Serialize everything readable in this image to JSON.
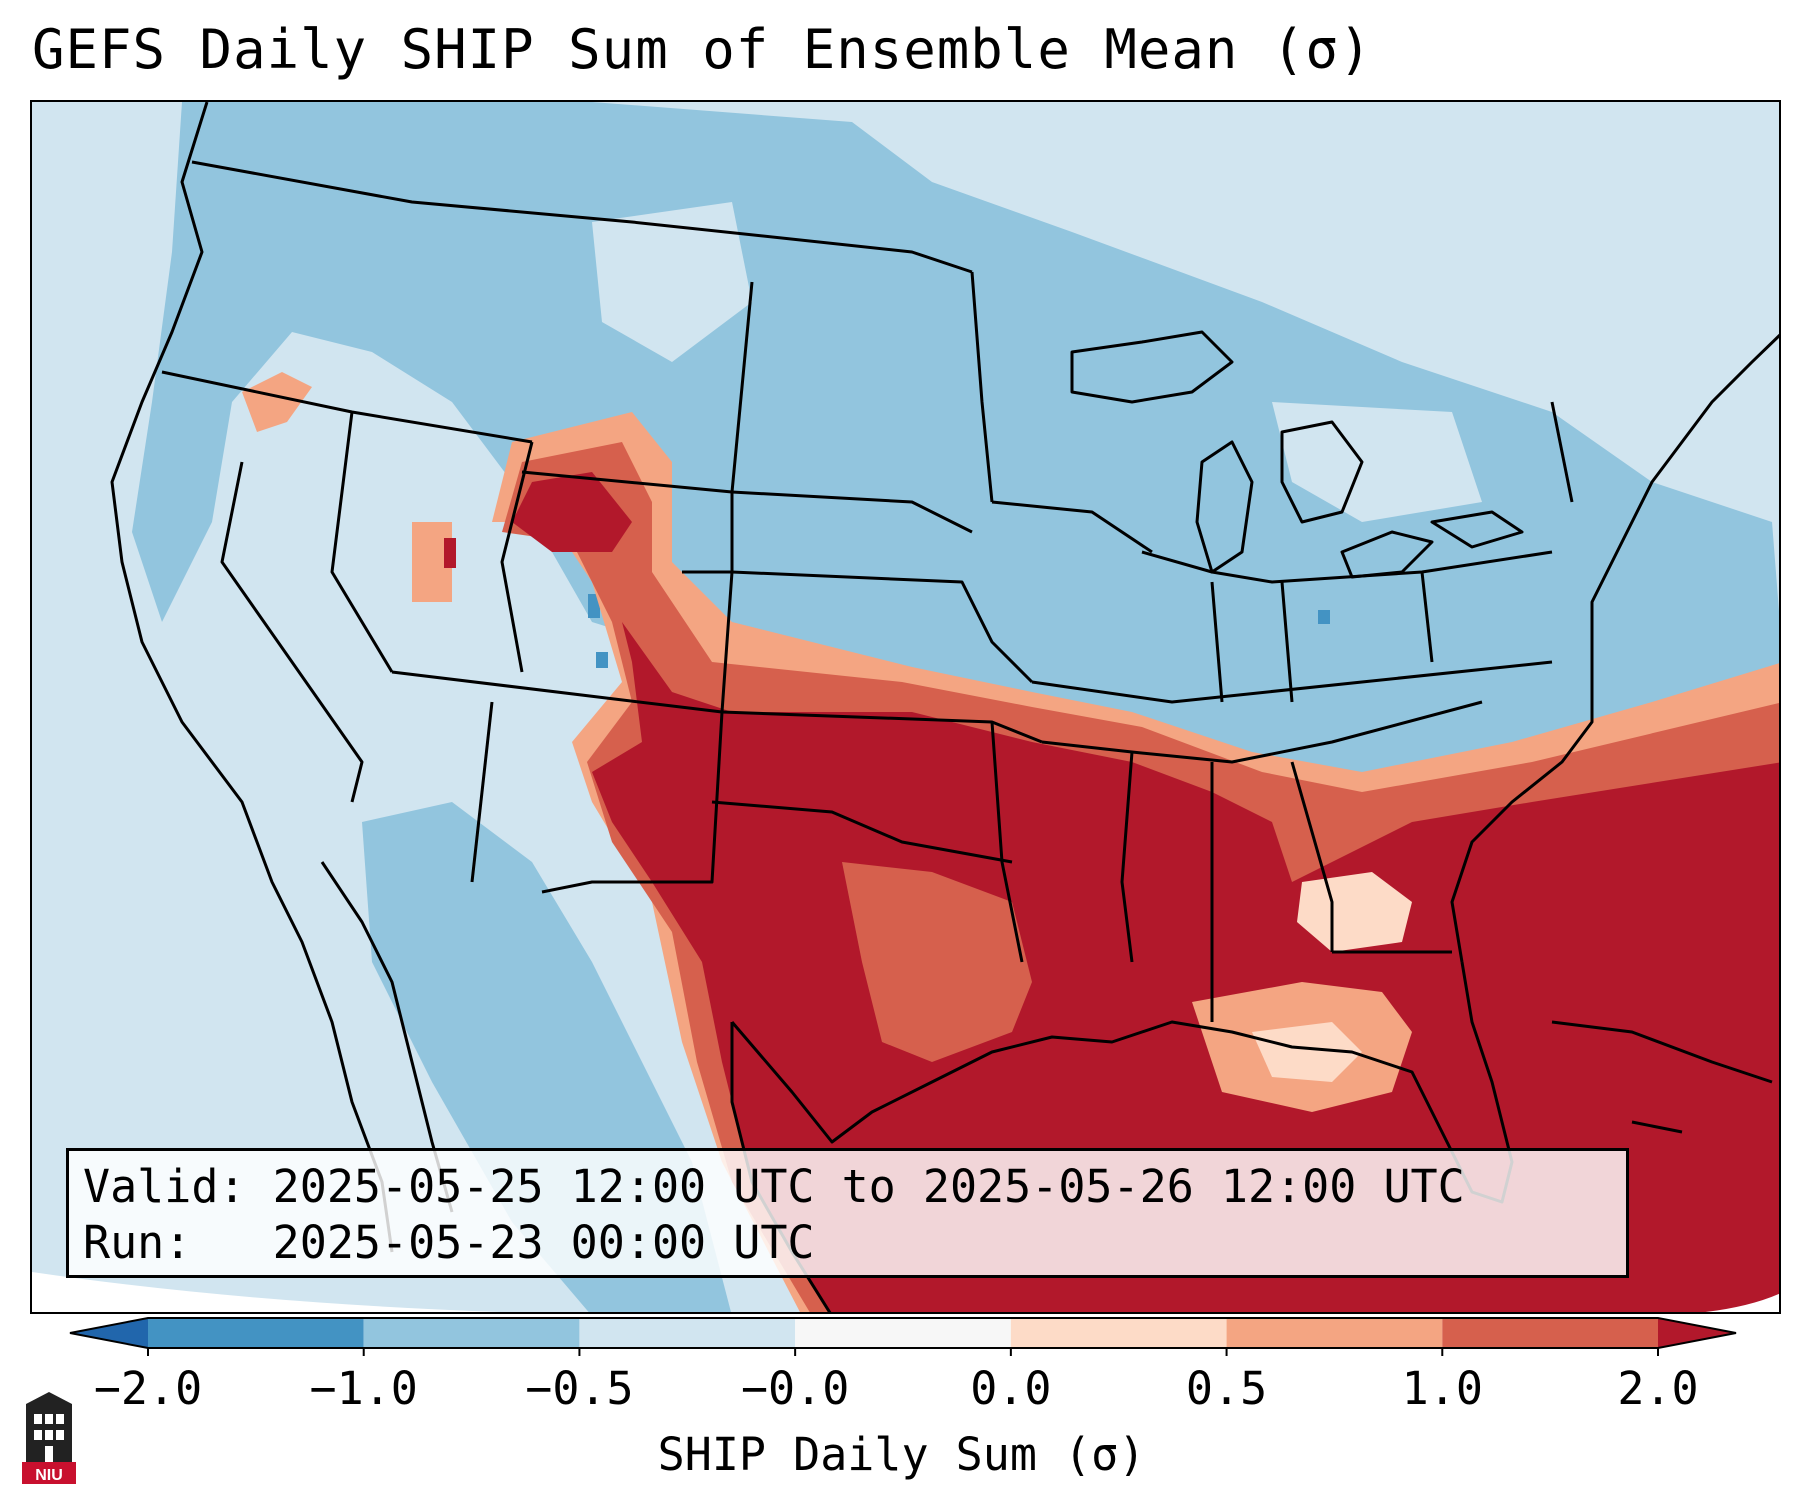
{
  "title": "GEFS Daily SHIP Sum of Ensemble Mean (σ)",
  "info": {
    "valid_label": "Valid:",
    "valid_value": "2025-05-25 12:00 UTC to 2025-05-26 12:00 UTC",
    "run_label": "Run:",
    "run_value": "2025-05-23 00:00 UTC"
  },
  "colorbar": {
    "label": "SHIP Daily Sum (σ)",
    "ticks": [
      "−2.0",
      "−1.0",
      "−0.5",
      "−0.0",
      "0.0",
      "0.5",
      "1.0",
      "2.0"
    ],
    "bins": [
      {
        "range": "-2.0 to -1.0",
        "color": "#4393c3"
      },
      {
        "range": "-1.0 to -0.5",
        "color": "#92c5de"
      },
      {
        "range": "-0.5 to -0.0",
        "color": "#d1e5f0"
      },
      {
        "range": "-0.0 to 0.0",
        "color": "#f7f7f7"
      },
      {
        "range": "0.0 to 0.5",
        "color": "#fddbc7"
      },
      {
        "range": "0.5 to 1.0",
        "color": "#f4a582"
      },
      {
        "range": "1.0 to 2.0",
        "color": "#d6604d"
      }
    ],
    "under_color": "#2166ac",
    "over_color": "#b2182b"
  },
  "colors": {
    "deep_red": "#b2182b",
    "red": "#d6604d",
    "salmon": "#f4a582",
    "peach": "#fddbc7",
    "light_blue": "#d1e5f0",
    "mid_blue": "#92c5de",
    "blue": "#4393c3"
  },
  "logo": {
    "text": "NIU",
    "icon": "niu-building-icon"
  }
}
